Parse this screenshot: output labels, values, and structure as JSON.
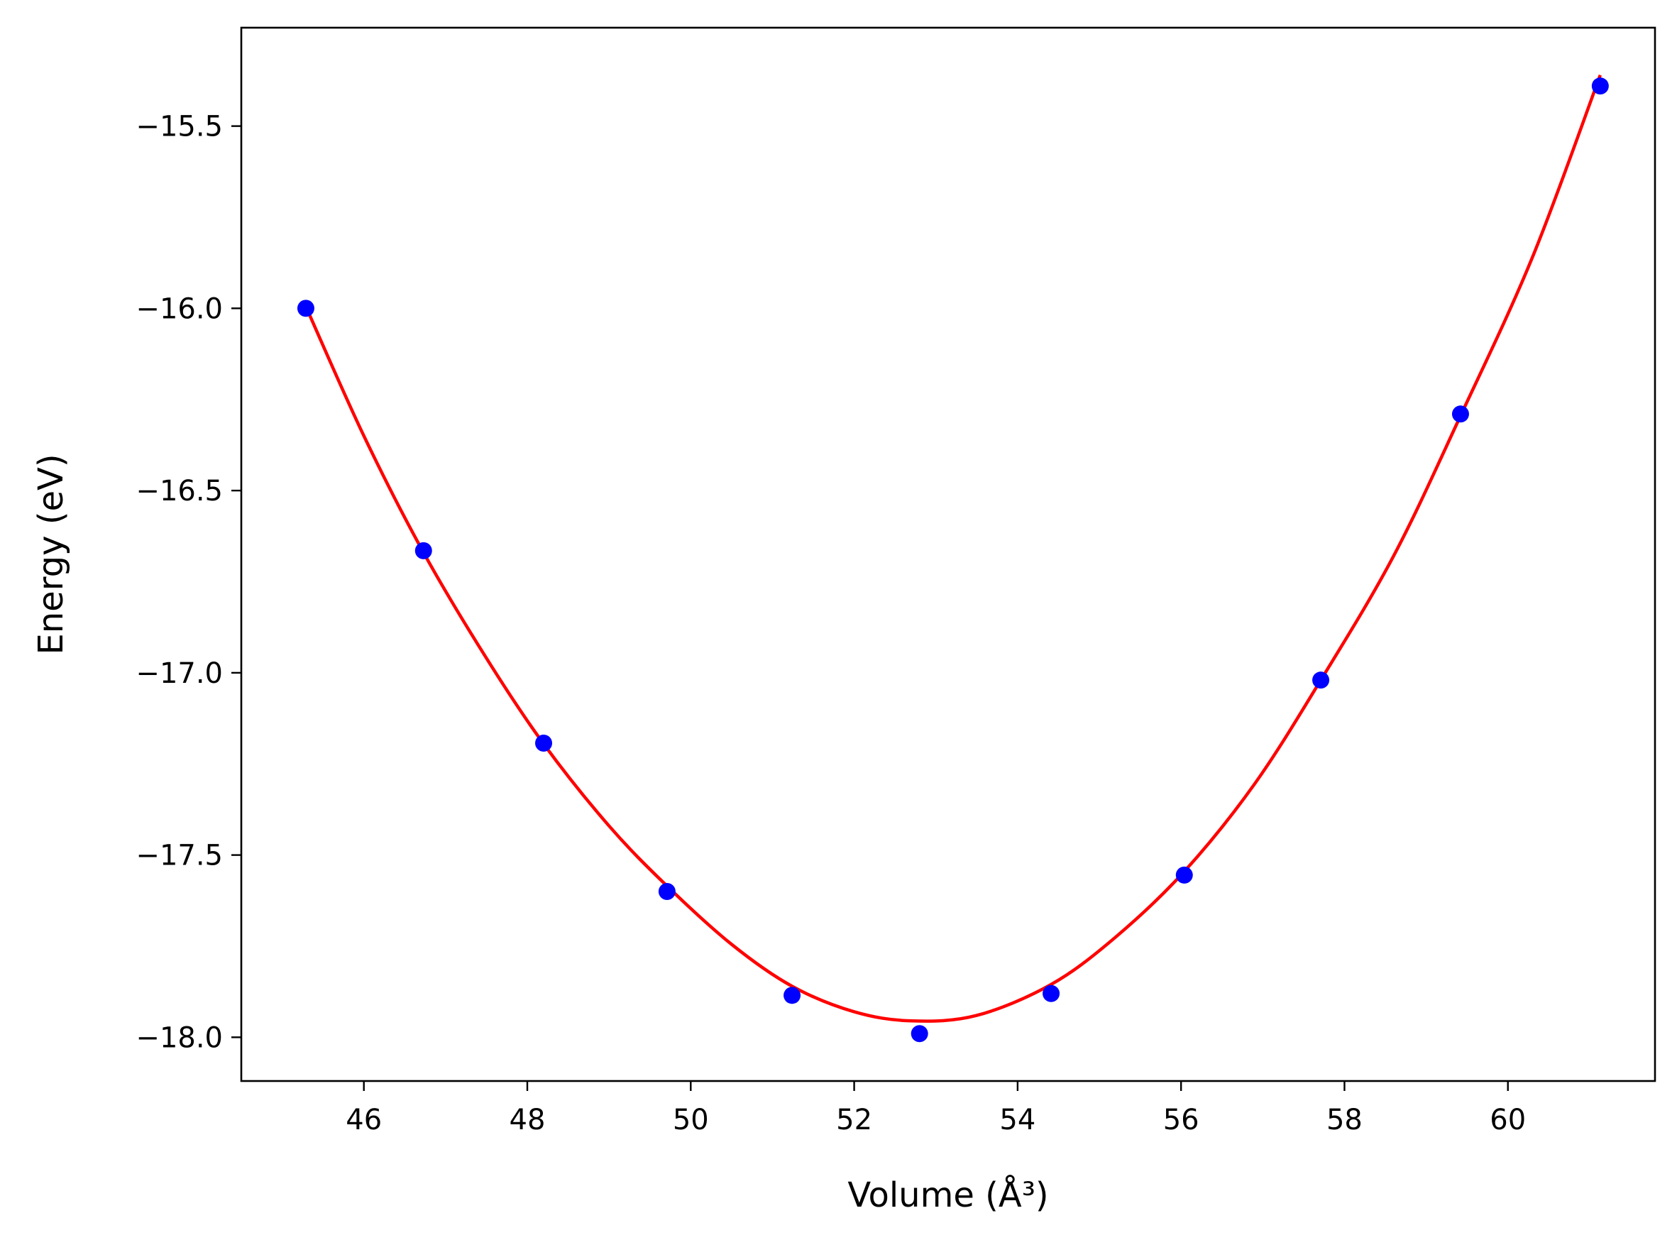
{
  "chart_data": {
    "type": "scatter",
    "xlabel": "Volume (Å³)",
    "ylabel": "Energy (eV)",
    "xlim": [
      44.5,
      61.8
    ],
    "ylim": [
      -18.12,
      -15.23
    ],
    "xticks": [
      46,
      48,
      50,
      52,
      54,
      56,
      58,
      60
    ],
    "xtick_labels": [
      "46",
      "48",
      "50",
      "52",
      "54",
      "56",
      "58",
      "60"
    ],
    "yticks": [
      -18.0,
      -17.5,
      -17.0,
      -16.5,
      -16.0,
      -15.5
    ],
    "ytick_labels": [
      "−18.0",
      "−17.5",
      "−17.0",
      "−16.5",
      "−16.0",
      "−15.5"
    ],
    "grid": false,
    "series": [
      {
        "kind": "points",
        "color": "#0000ff",
        "x": [
          45.29,
          46.73,
          48.2,
          49.71,
          51.24,
          52.8,
          54.41,
          56.04,
          57.71,
          59.42,
          61.13
        ],
        "y": [
          -16.0,
          -16.665,
          -17.193,
          -17.6,
          -17.885,
          -17.99,
          -17.88,
          -17.555,
          -17.02,
          -16.29,
          -15.39
        ]
      },
      {
        "kind": "fit-curve",
        "color": "#ff0000",
        "x": [
          45.29,
          46.0,
          46.73,
          47.5,
          48.2,
          49.0,
          49.71,
          50.5,
          51.24,
          52.0,
          52.7,
          53.5,
          54.41,
          55.2,
          56.04,
          56.9,
          57.71,
          58.6,
          59.42,
          60.3,
          61.13
        ],
        "y": [
          -15.995,
          -16.35,
          -16.67,
          -16.96,
          -17.195,
          -17.42,
          -17.585,
          -17.745,
          -17.86,
          -17.93,
          -17.955,
          -17.94,
          -17.855,
          -17.725,
          -17.545,
          -17.305,
          -17.02,
          -16.68,
          -16.295,
          -15.86,
          -15.36
        ]
      }
    ]
  }
}
